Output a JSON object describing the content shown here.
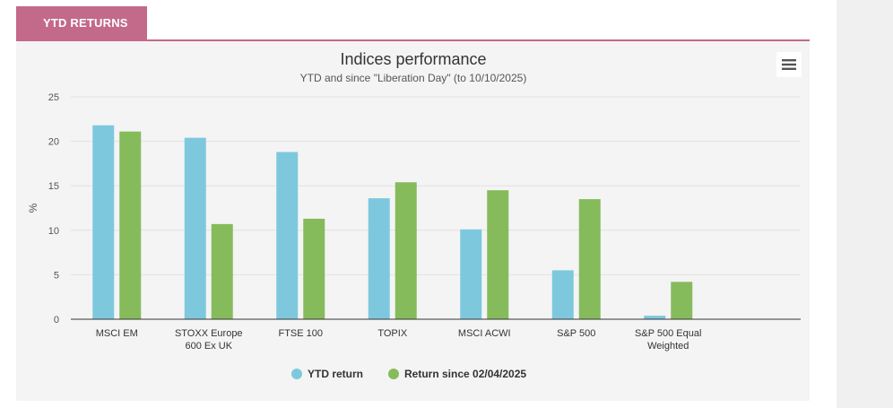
{
  "tab": {
    "label": "YTD RETURNS"
  },
  "menu": {
    "icon": "hamburger-menu-icon"
  },
  "colors": {
    "accent": "#c3698a",
    "panel_bg": "#f4f4f4",
    "gutter_bg": "#f0f0f0",
    "series_ytd": "#7ec8de",
    "series_liberation": "#86bb5c"
  },
  "chart_data": {
    "type": "bar",
    "title": "Indices performance",
    "subtitle": "YTD and since \"Liberation Day\" (to 10/10/2025)",
    "xlabel": "",
    "ylabel": "%",
    "ylim": [
      0,
      25
    ],
    "yticks": [
      0,
      5,
      10,
      15,
      20,
      25
    ],
    "grid": true,
    "legend_position": "bottom-center",
    "categories": [
      [
        "MSCI EM"
      ],
      [
        "STOXX Europe",
        "600 Ex UK"
      ],
      [
        "FTSE 100"
      ],
      [
        "TOPIX"
      ],
      [
        "MSCI ACWI"
      ],
      [
        "S&P 500"
      ],
      [
        "S&P 500 Equal",
        "Weighted"
      ]
    ],
    "series": [
      {
        "name": "YTD return",
        "color": "#7ec8de",
        "values": [
          21.8,
          20.4,
          18.8,
          13.6,
          10.1,
          5.5,
          0.4
        ]
      },
      {
        "name": "Return since 02/04/2025",
        "color": "#86bb5c",
        "values": [
          21.1,
          10.7,
          11.3,
          15.4,
          14.5,
          13.5,
          4.2
        ]
      }
    ]
  }
}
